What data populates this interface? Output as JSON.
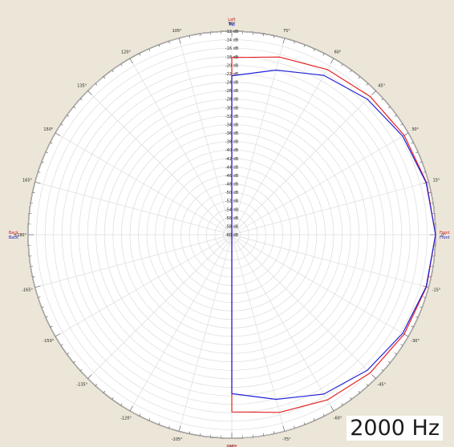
{
  "frequency_label": "2000 Hz",
  "chart_data": {
    "type": "polar",
    "angle_labels": [
      "90°",
      "75°",
      "60°",
      "45°",
      "30°",
      "15°",
      "0°",
      "-15°",
      "-30°",
      "-45°",
      "-60°",
      "-75°",
      "-90°",
      "-105°",
      "-120°",
      "-135°",
      "-150°",
      "-165°",
      "±180°",
      "165°",
      "150°",
      "135°",
      "120°",
      "105°"
    ],
    "radial_labels": [
      "-12 dB",
      "-14 dB",
      "-16 dB",
      "-18 dB",
      "-20 dB",
      "-22 dB",
      "-24 dB",
      "-26 dB",
      "-28 dB",
      "-30 dB",
      "-32 dB",
      "-34 dB",
      "-36 dB",
      "-38 dB",
      "-40 dB",
      "-42 dB",
      "-44 dB",
      "-46 dB",
      "-48 dB",
      "-50 dB",
      "-52 dB",
      "-54 dB",
      "-56 dB",
      "-58 dB",
      "-60 dB"
    ],
    "r_range_db": [
      -60,
      -12
    ],
    "grid": true,
    "direction_labels": {
      "top": [
        "Left",
        "Top"
      ],
      "right": [
        "Front",
        "Front"
      ],
      "left": [
        "Back",
        "Back"
      ],
      "bottom": [
        "Right"
      ]
    },
    "series": [
      {
        "color": "#e52222",
        "angles": [
          -90,
          -75,
          -60,
          -45,
          -30,
          -15,
          0,
          15,
          30,
          45,
          60,
          75,
          90
        ],
        "values": [
          -18.2,
          -16.6,
          -15.0,
          -13.9,
          -13.1,
          -12.5,
          -12.0,
          -12.5,
          -13.1,
          -13.9,
          -15.0,
          -16.6,
          -18.2
        ]
      },
      {
        "color": "#2222d8",
        "angles": [
          -90,
          -75,
          -60,
          -45,
          -30,
          -15,
          0,
          15,
          30,
          45,
          60,
          75,
          90
        ],
        "values": [
          -22.5,
          -19.8,
          -16.6,
          -14.8,
          -13.5,
          -12.6,
          -12.0,
          -12.6,
          -13.5,
          -14.8,
          -16.6,
          -19.8,
          -22.5
        ]
      }
    ]
  }
}
